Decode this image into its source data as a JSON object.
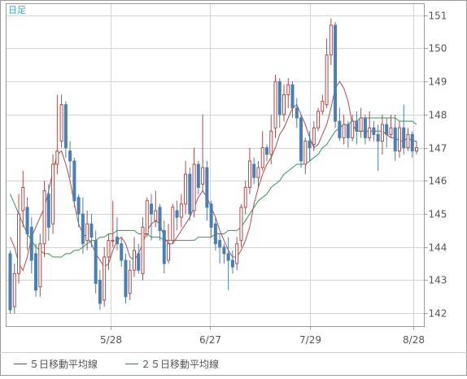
{
  "chart_data": {
    "type": "candlestick",
    "title": "",
    "period_label": "日足",
    "x_tick_labels": [
      "5/28",
      "6/27",
      "7/29",
      "8/28"
    ],
    "y_ticks": [
      142,
      143,
      144,
      145,
      146,
      147,
      148,
      149,
      150,
      151
    ],
    "ylim": [
      141.6,
      151.35
    ],
    "grid": true,
    "legend": [
      {
        "key": "ma5",
        "label": "５日移動平均線",
        "color": "#b24a4a"
      },
      {
        "key": "ma25",
        "label": "２５日移動平均線",
        "color": "#2e9a4e"
      }
    ],
    "colors": {
      "up": "#b24a4a",
      "down": "#4a7fb5",
      "axis": "#9a9a9a",
      "grid": "#d4d4d4",
      "label": "#555555",
      "period": "#3b9fbf"
    },
    "candles": [
      [
        143.8,
        142.1,
        143.9,
        142.0
      ],
      [
        142.2,
        143.2,
        143.5,
        142.0
      ],
      [
        143.2,
        145.0,
        145.6,
        142.9
      ],
      [
        145.1,
        145.8,
        146.3,
        144.6
      ],
      [
        145.2,
        144.4,
        145.5,
        143.9
      ],
      [
        144.6,
        143.6,
        144.9,
        143.2
      ],
      [
        143.8,
        142.7,
        144.1,
        142.5
      ],
      [
        142.8,
        144.1,
        144.4,
        142.5
      ],
      [
        144.1,
        145.7,
        146.0,
        143.7
      ],
      [
        145.6,
        144.6,
        145.9,
        144.2
      ],
      [
        144.7,
        146.5,
        146.8,
        144.4
      ],
      [
        146.5,
        146.9,
        148.6,
        146.2
      ],
      [
        147.2,
        148.3,
        148.6,
        147.0
      ],
      [
        148.3,
        147.0,
        148.4,
        146.7
      ],
      [
        146.9,
        146.6,
        147.2,
        146.1
      ],
      [
        146.6,
        145.4,
        146.7,
        145.2
      ],
      [
        145.5,
        145.0,
        145.6,
        144.6
      ],
      [
        145.0,
        144.1,
        145.5,
        143.8
      ],
      [
        144.2,
        144.7,
        145.1,
        143.9
      ],
      [
        144.7,
        144.3,
        145.0,
        144.0
      ],
      [
        144.2,
        142.9,
        144.5,
        142.6
      ],
      [
        143.0,
        142.3,
        143.3,
        142.1
      ],
      [
        142.4,
        143.7,
        144.0,
        142.2
      ],
      [
        143.7,
        144.2,
        144.4,
        143.3
      ],
      [
        144.2,
        144.2,
        145.4,
        144.0
      ],
      [
        144.3,
        144.1,
        144.9,
        143.9
      ],
      [
        144.1,
        143.6,
        144.3,
        143.4
      ],
      [
        143.6,
        142.5,
        143.8,
        142.3
      ],
      [
        142.6,
        143.3,
        143.6,
        142.4
      ],
      [
        143.3,
        143.9,
        144.3,
        143.1
      ],
      [
        143.8,
        143.3,
        144.1,
        143.2
      ],
      [
        143.2,
        144.6,
        144.9,
        143.0
      ],
      [
        144.4,
        145.4,
        145.5,
        144.3
      ],
      [
        145.3,
        145.0,
        145.6,
        144.2
      ],
      [
        144.8,
        145.1,
        145.7,
        144.6
      ],
      [
        145.2,
        144.5,
        145.3,
        144.2
      ],
      [
        144.5,
        143.5,
        144.8,
        143.2
      ],
      [
        143.6,
        144.1,
        144.7,
        143.5
      ],
      [
        144.2,
        145.2,
        145.3,
        144.1
      ],
      [
        145.1,
        144.9,
        145.4,
        144.5
      ],
      [
        144.9,
        145.3,
        145.6,
        144.6
      ],
      [
        145.3,
        146.2,
        146.6,
        145.0
      ],
      [
        146.2,
        145.0,
        146.4,
        144.8
      ],
      [
        145.1,
        146.5,
        147.0,
        144.9
      ],
      [
        146.5,
        145.8,
        146.6,
        145.6
      ],
      [
        145.9,
        146.4,
        148.0,
        145.7
      ],
      [
        146.4,
        145.2,
        146.6,
        144.8
      ],
      [
        145.3,
        144.6,
        145.4,
        144.3
      ],
      [
        144.7,
        144.1,
        144.9,
        143.9
      ],
      [
        144.2,
        144.0,
        144.4,
        143.5
      ],
      [
        144.0,
        143.8,
        144.1,
        143.5
      ],
      [
        143.8,
        143.6,
        144.3,
        142.7
      ],
      [
        143.6,
        143.4,
        143.9,
        143.2
      ],
      [
        143.5,
        144.1,
        144.3,
        143.3
      ],
      [
        144.2,
        145.2,
        145.3,
        144.0
      ],
      [
        145.2,
        145.8,
        146.0,
        145.0
      ],
      [
        145.8,
        146.6,
        147.0,
        145.6
      ],
      [
        146.5,
        146.1,
        146.7,
        145.9
      ],
      [
        146.1,
        146.4,
        146.6,
        145.8
      ],
      [
        146.4,
        147.0,
        147.5,
        146.3
      ],
      [
        147.0,
        146.8,
        147.1,
        146.6
      ],
      [
        146.8,
        147.5,
        148.0,
        146.5
      ],
      [
        147.6,
        149.0,
        149.2,
        147.3
      ],
      [
        149.0,
        148.0,
        149.1,
        147.6
      ],
      [
        148.0,
        148.6,
        148.9,
        147.8
      ],
      [
        148.6,
        148.9,
        149.1,
        148.2
      ],
      [
        148.9,
        148.2,
        149.0,
        147.9
      ],
      [
        148.2,
        147.9,
        148.5,
        147.6
      ],
      [
        147.9,
        146.6,
        148.0,
        146.4
      ],
      [
        146.5,
        147.2,
        147.3,
        146.2
      ],
      [
        147.2,
        147.0,
        147.5,
        146.6
      ],
      [
        147.1,
        147.6,
        147.8,
        146.9
      ],
      [
        147.6,
        148.1,
        148.2,
        147.5
      ],
      [
        148.1,
        148.4,
        148.6,
        148.0
      ],
      [
        148.3,
        149.8,
        150.3,
        148.2
      ],
      [
        149.8,
        150.7,
        150.9,
        149.5
      ],
      [
        150.7,
        147.8,
        150.8,
        147.6
      ],
      [
        147.8,
        147.3,
        148.2,
        147.2
      ],
      [
        147.3,
        147.7,
        148.0,
        147.1
      ],
      [
        147.7,
        147.3,
        147.8,
        147.0
      ],
      [
        147.3,
        147.8,
        148.0,
        147.2
      ],
      [
        147.8,
        147.5,
        148.1,
        147.1
      ],
      [
        147.5,
        147.9,
        148.2,
        147.3
      ],
      [
        147.9,
        147.3,
        148.0,
        147.1
      ],
      [
        147.3,
        147.6,
        148.1,
        147.2
      ],
      [
        147.6,
        147.4,
        147.8,
        147.2
      ],
      [
        147.4,
        147.2,
        147.7,
        146.3
      ],
      [
        147.2,
        147.7,
        148.0,
        146.8
      ],
      [
        147.7,
        147.4,
        147.9,
        147.0
      ],
      [
        147.4,
        147.6,
        148.0,
        147.3
      ],
      [
        147.6,
        146.9,
        148.0,
        146.6
      ],
      [
        146.9,
        147.6,
        147.8,
        146.7
      ],
      [
        147.6,
        147.0,
        148.3,
        146.8
      ],
      [
        147.0,
        147.4,
        147.6,
        146.9
      ],
      [
        147.4,
        146.9,
        147.5,
        146.7
      ],
      [
        146.9,
        147.0,
        147.2,
        146.8
      ]
    ],
    "ma5": [
      144.3,
      144.0,
      143.5,
      143.3,
      143.7,
      144.3,
      144.6,
      144.9,
      145.2,
      145.7,
      146.3,
      146.8,
      146.9,
      146.5,
      146.0,
      145.3,
      144.7,
      144.4,
      144.3,
      144.1,
      143.8,
      143.6,
      143.4,
      143.5,
      143.9,
      144.2,
      144.3,
      144.1,
      143.7,
      143.6,
      143.8,
      144.1,
      144.5,
      144.7,
      144.8,
      144.7,
      144.3,
      144.1,
      144.1,
      144.3,
      144.5,
      144.7,
      144.9,
      145.2,
      145.5,
      145.7,
      145.5,
      145.2,
      144.9,
      144.5,
      144.2,
      143.9,
      143.7,
      143.7,
      143.9,
      144.2,
      144.6,
      145.3,
      145.8,
      146.2,
      146.5,
      146.7,
      147.0,
      147.4,
      147.6,
      147.9,
      148.2,
      148.3,
      148.0,
      147.7,
      147.3,
      147.0,
      147.1,
      147.4,
      147.7,
      148.2,
      148.8,
      149.0,
      148.8,
      148.4,
      147.7,
      147.5,
      147.5,
      147.5,
      147.5,
      147.5,
      147.5,
      147.5,
      147.4,
      147.3,
      147.3,
      147.2,
      147.2,
      147.3,
      147.2,
      147.2
    ],
    "ma25": [
      145.6,
      145.3,
      145.0,
      144.7,
      144.4,
      144.2,
      144.0,
      143.9,
      143.8,
      143.8,
      143.7,
      143.7,
      143.7,
      143.8,
      143.8,
      143.9,
      143.9,
      144.0,
      144.1,
      144.2,
      144.2,
      144.3,
      144.3,
      144.4,
      144.4,
      144.5,
      144.5,
      144.5,
      144.5,
      144.5,
      144.4,
      144.4,
      144.4,
      144.3,
      144.3,
      144.3,
      144.2,
      144.2,
      144.2,
      144.2,
      144.2,
      144.2,
      144.2,
      144.2,
      144.3,
      144.3,
      144.3,
      144.3,
      144.4,
      144.4,
      144.4,
      144.5,
      144.5,
      144.5,
      144.6,
      144.8,
      145.0,
      145.2,
      145.4,
      145.5,
      145.6,
      145.8,
      145.9,
      146.0,
      146.2,
      146.3,
      146.4,
      146.5,
      146.5,
      146.5,
      146.6,
      146.7,
      146.8,
      147.0,
      147.1,
      147.3,
      147.5,
      147.6,
      147.7,
      147.7,
      147.8,
      147.8,
      147.9,
      147.9,
      147.9,
      147.9,
      147.9,
      147.9,
      147.9,
      147.9,
      147.9,
      147.8,
      147.8,
      147.8,
      147.8,
      147.7
    ]
  }
}
